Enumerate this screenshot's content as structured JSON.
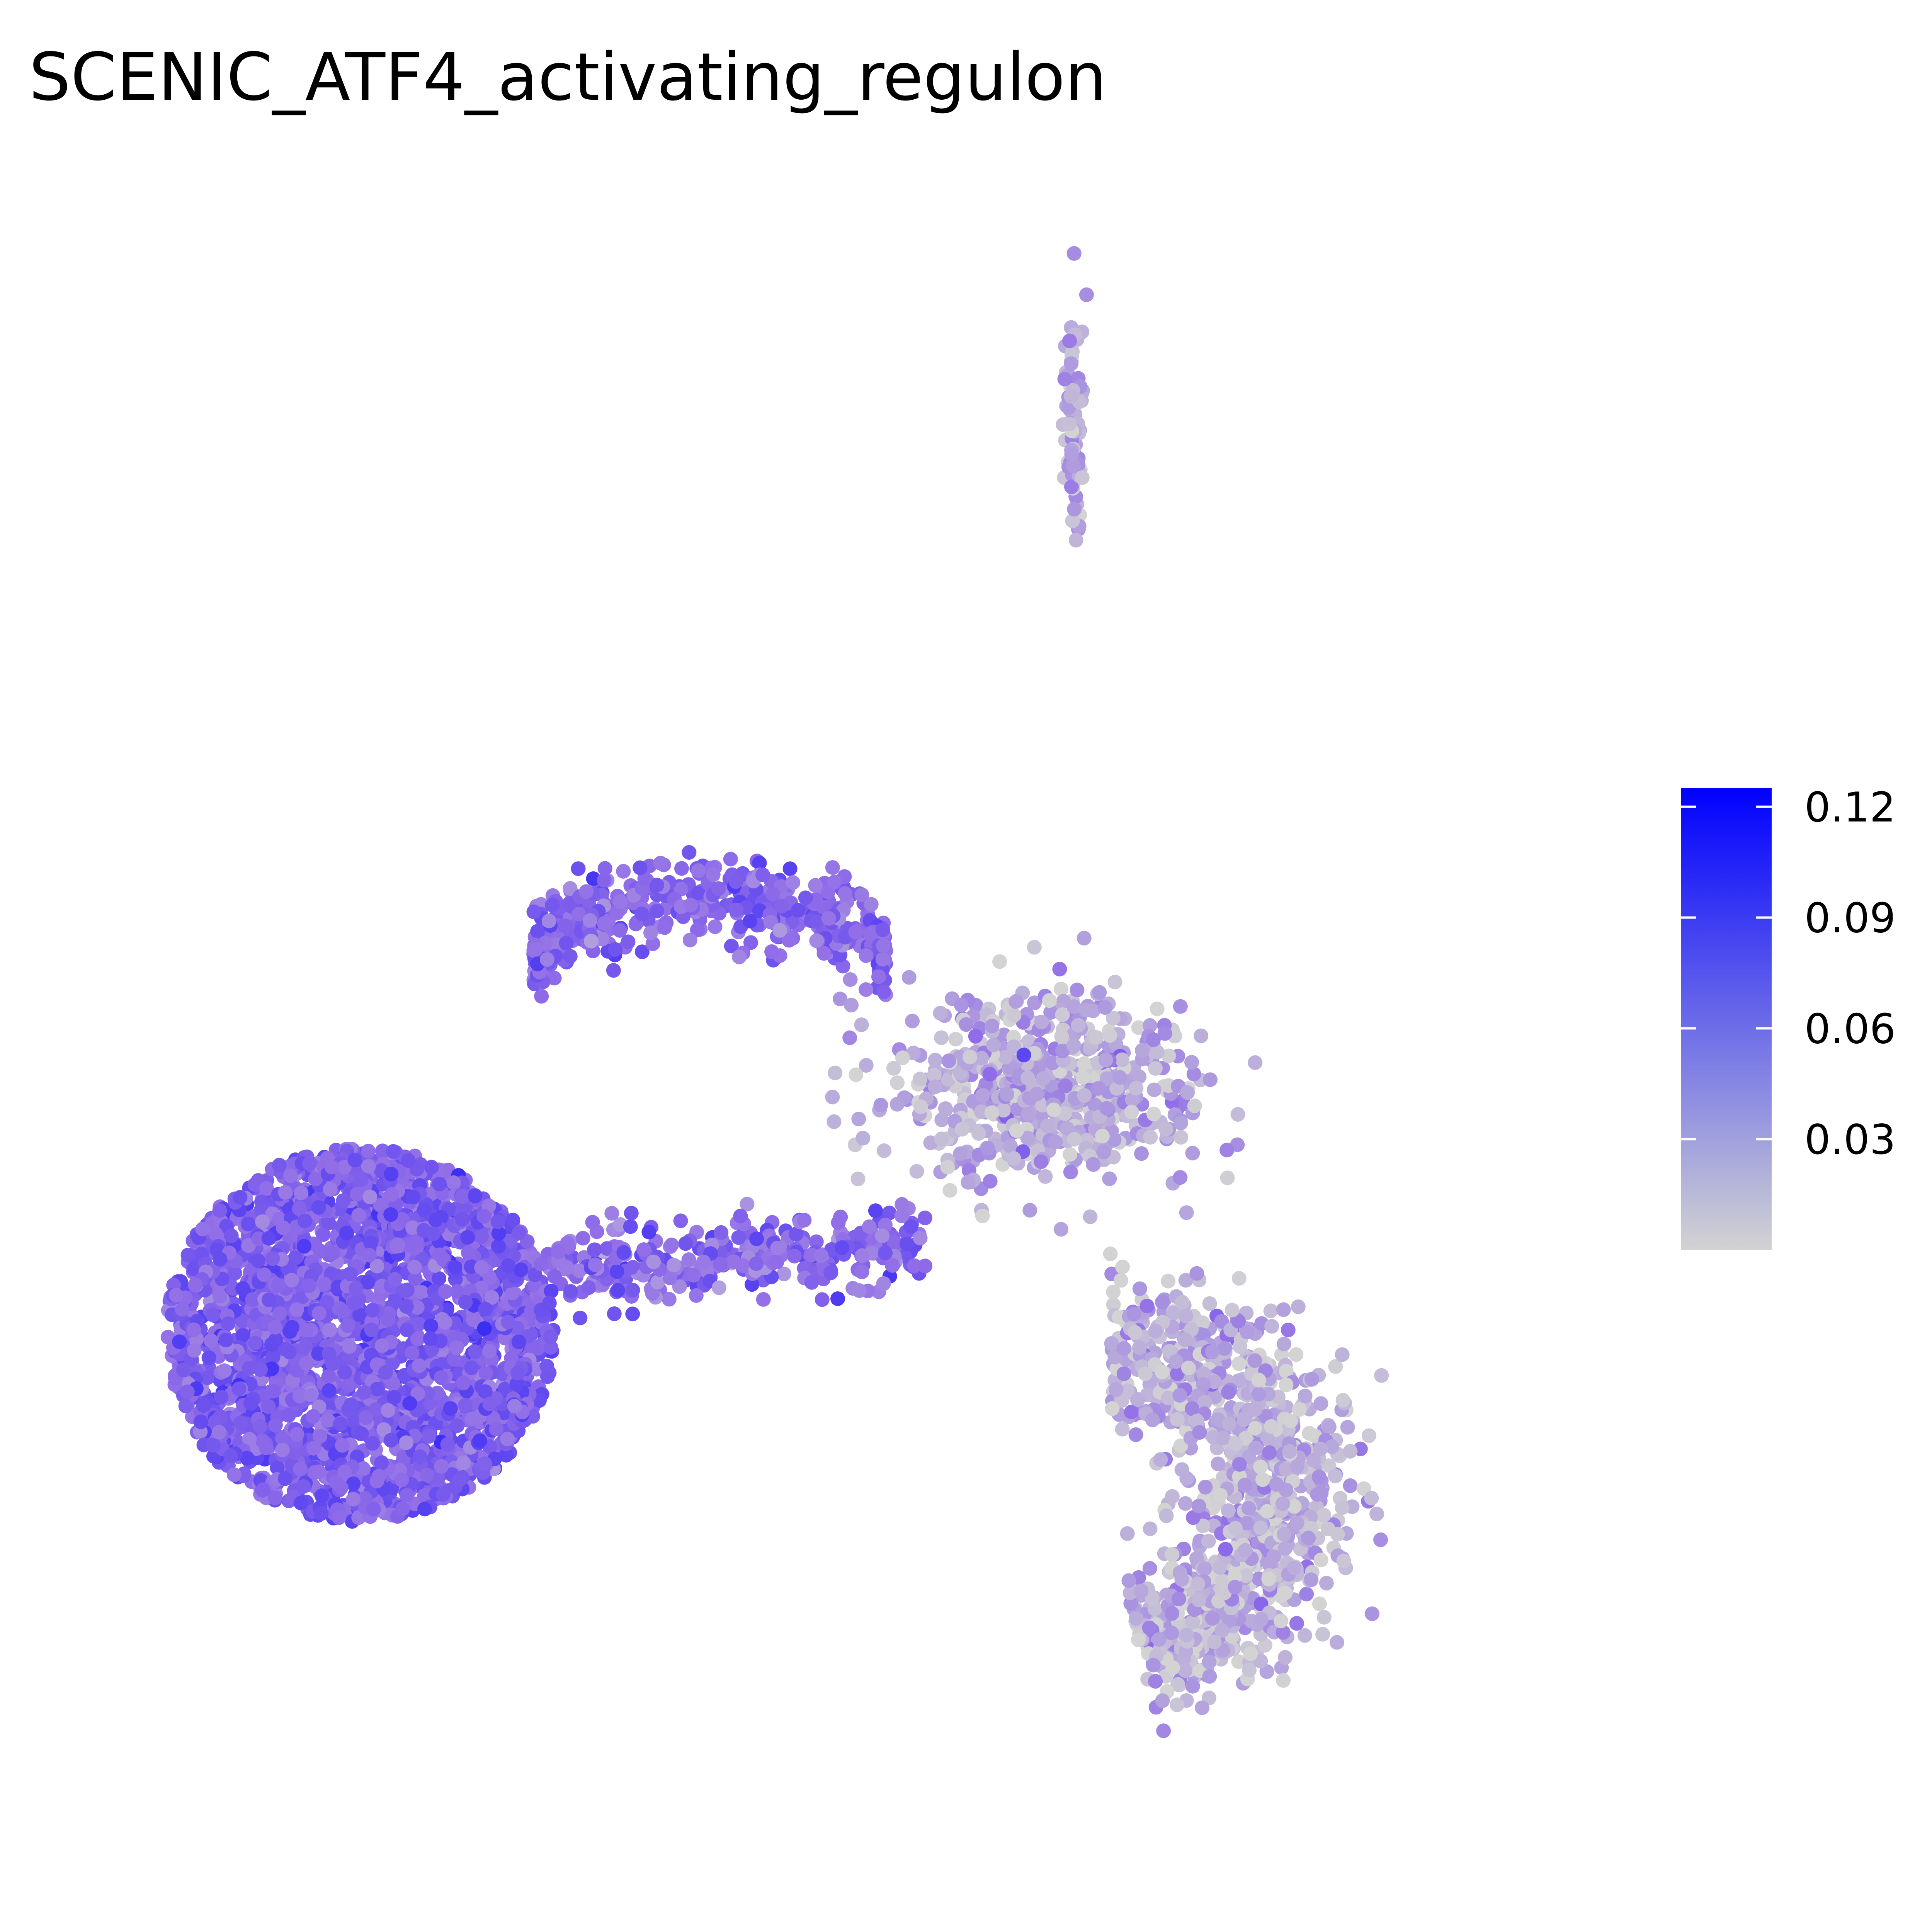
{
  "chart_data": {
    "type": "scatter",
    "title": "SCENIC_ATF4_activating_regulon",
    "xlabel": "",
    "ylabel": "",
    "xlim": [
      -10,
      10
    ],
    "ylim": [
      -10,
      10
    ],
    "grid": false,
    "legend": {
      "placement": "right",
      "kind": "colorbar",
      "range": [
        0.0,
        0.125
      ],
      "ticks": [
        "0.03",
        "0.06",
        "0.09",
        "0.12"
      ],
      "tick_values": [
        0.03,
        0.06,
        0.09,
        0.12
      ],
      "color_low": "#d3d3d3",
      "color_high": "#0000ff"
    },
    "point_color": "value (regulon activity)",
    "clusters": [
      {
        "id": "left-large",
        "center": [
          -6.2,
          -3.2
        ],
        "spread": [
          2.6,
          2.2
        ],
        "n": 2600,
        "mean": 0.07,
        "sd": 0.01
      },
      {
        "id": "upper-arc",
        "center": [
          -1.5,
          1.5
        ],
        "spread": [
          2.0,
          0.8
        ],
        "n": 500,
        "mean": 0.066,
        "sd": 0.01
      },
      {
        "id": "bridge",
        "center": [
          -1.2,
          -2.3
        ],
        "spread": [
          2.6,
          0.4
        ],
        "n": 320,
        "mean": 0.065,
        "sd": 0.012
      },
      {
        "id": "mid-right",
        "center": [
          3.0,
          -0.3
        ],
        "spread": [
          1.6,
          0.9
        ],
        "n": 650,
        "mean": 0.025,
        "sd": 0.018
      },
      {
        "id": "crescent-lower-right",
        "center": [
          4.5,
          -5.3
        ],
        "spread": [
          2.2,
          1.6
        ],
        "n": 1100,
        "mean": 0.022,
        "sd": 0.016
      },
      {
        "id": "top-strand",
        "center": [
          3.4,
          7.5
        ],
        "spread": [
          0.12,
          1.2
        ],
        "n": 80,
        "mean": 0.025,
        "sd": 0.016
      }
    ]
  }
}
